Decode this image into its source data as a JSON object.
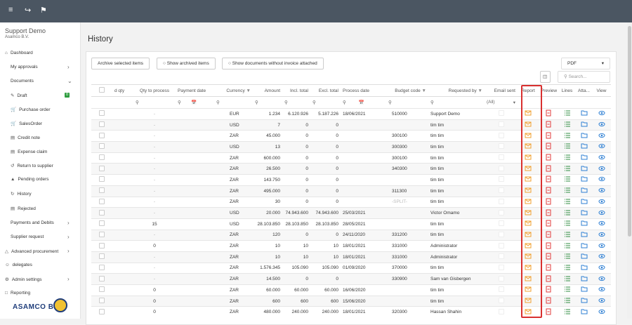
{
  "header": {
    "org": "Support Demo",
    "company": "Asamco B.V."
  },
  "nav": [
    {
      "label": "Dashboard"
    },
    {
      "label": "My approvals"
    },
    {
      "label": "Documents"
    },
    {
      "label": "Draft",
      "badge": "0"
    },
    {
      "label": "Purchase order"
    },
    {
      "label": "SalesOrder"
    },
    {
      "label": "Credit note"
    },
    {
      "label": "Expense claim"
    },
    {
      "label": "Return to supplier"
    },
    {
      "label": "Pending orders"
    },
    {
      "label": "History"
    },
    {
      "label": "Rejected"
    },
    {
      "label": "Payments and Debits"
    },
    {
      "label": "Supplier request"
    },
    {
      "label": "Advanced procurement"
    },
    {
      "label": "delegates"
    },
    {
      "label": "Admin settings"
    },
    {
      "label": "Reporting"
    }
  ],
  "logo": "ASAMCO B.V.",
  "page_title": "History",
  "buttons": [
    "Archive selected items",
    "Show archived items",
    "Show documents without invoice attached"
  ],
  "export_format": "PDF",
  "search_placeholder": "Search...",
  "table": {
    "headers": [
      "d qty",
      "Qty to process",
      "Payment date",
      "Currency",
      "Amount",
      "Incl. total",
      "Excl. total",
      "Process date",
      "Budget code",
      "Requested by",
      "Email sent",
      "Report",
      "Preview",
      "Lines",
      "Atta...",
      "View"
    ],
    "email_filter": "(All)",
    "rows": [
      [
        "-",
        "EUR",
        "1.234",
        "6.120.926",
        "5.187.226",
        "18/06/2021",
        "510000",
        "Support Demo"
      ],
      [
        "-",
        "USD",
        "7",
        "0",
        "0",
        null,
        null,
        "tim tim"
      ],
      [
        "-",
        "ZAR",
        "45.000",
        "0",
        "0",
        null,
        "300100",
        "tim tim"
      ],
      [
        "-",
        "USD",
        "13",
        "0",
        "0",
        null,
        "300300",
        "tim tim"
      ],
      [
        "-",
        "ZAR",
        "600.000",
        "0",
        "0",
        null,
        "300100",
        "tim tim"
      ],
      [
        "-",
        "ZAR",
        "26.500",
        "0",
        "0",
        null,
        "340300",
        "tim tim"
      ],
      [
        "-",
        "ZAR",
        "143.750",
        "0",
        "0",
        null,
        null,
        "tim tim"
      ],
      [
        "-",
        "ZAR",
        "495.000",
        "0",
        "0",
        null,
        "311300",
        "tim tim"
      ],
      [
        "-",
        "ZAR",
        "30",
        "0",
        "0",
        null,
        "-SPLIT-",
        "tim tim"
      ],
      [
        "-",
        "USD",
        "20.000",
        "74.943.600",
        "74.943.600",
        "25/03/2021",
        null,
        "Victor Omamo"
      ],
      [
        "15",
        "USD",
        "28.103.850",
        "28.103.850",
        "28.103.850",
        "28/05/2021",
        null,
        "tim tim"
      ],
      [
        "-",
        "ZAR",
        "120",
        "0",
        "0",
        "24/11/2020",
        "331200",
        "tim tim"
      ],
      [
        "0",
        "ZAR",
        "10",
        "10",
        "10",
        "18/01/2021",
        "331000",
        "Administrator"
      ],
      [
        "-",
        "ZAR",
        "10",
        "10",
        "10",
        "18/01/2021",
        "331000",
        "Administrator"
      ],
      [
        "-",
        "ZAR",
        "1.576.345",
        "105.090",
        "105.090",
        "01/09/2020",
        "370000",
        "tim tim"
      ],
      [
        "-",
        "ZAR",
        "14.500",
        "0",
        "0",
        null,
        "330900",
        "Sam van Gisbergen"
      ],
      [
        "0",
        "ZAR",
        "60.000",
        "60.000",
        "60.000",
        "16/06/2020",
        null,
        "tim tim"
      ],
      [
        "0",
        "ZAR",
        "600",
        "600",
        "600",
        "15/06/2020",
        null,
        "tim tim"
      ],
      [
        "0",
        "ZAR",
        "480.000",
        "240.000",
        "240.000",
        "18/01/2021",
        "320300",
        "Hassan Shahin"
      ]
    ]
  }
}
